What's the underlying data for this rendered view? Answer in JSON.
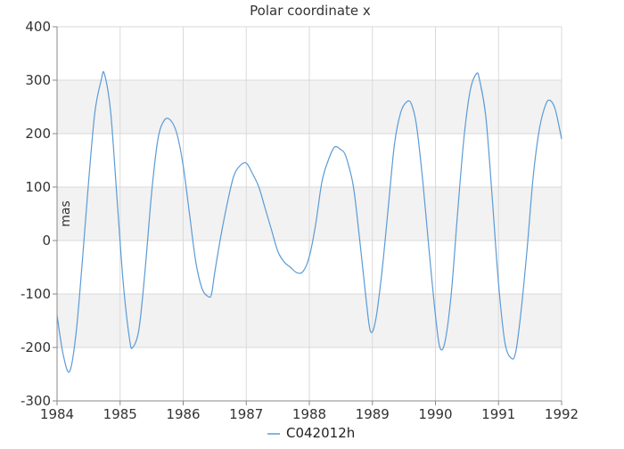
{
  "chart_data": {
    "type": "line",
    "title": "Polar coordinate x",
    "ylabel": "mas",
    "xlabel": "",
    "xlim": [
      1984,
      1992
    ],
    "ylim": [
      -300,
      400
    ],
    "x_ticks": [
      "1984",
      "1985",
      "1986",
      "1987",
      "1988",
      "1989",
      "1990",
      "1991",
      "1992"
    ],
    "y_ticks": [
      "400",
      "300",
      "200",
      "100",
      "0",
      "-100",
      "-200",
      "-300"
    ],
    "grid": true,
    "legend": {
      "placement": "bottom-center"
    },
    "colors": {
      "series": "#5b9bd5",
      "band": "#f2f2f2",
      "grid": "#d9d9d9",
      "axis": "#888888"
    },
    "series": [
      {
        "name": "C042012h",
        "x": [
          1984.0,
          1984.1,
          1984.2,
          1984.3,
          1984.4,
          1984.5,
          1984.6,
          1984.7,
          1984.75,
          1984.85,
          1984.95,
          1985.05,
          1985.15,
          1985.2,
          1985.3,
          1985.4,
          1985.5,
          1985.6,
          1985.7,
          1985.8,
          1985.9,
          1986.0,
          1986.1,
          1986.2,
          1986.3,
          1986.4,
          1986.45,
          1986.5,
          1986.6,
          1986.7,
          1986.8,
          1986.9,
          1987.0,
          1987.1,
          1987.2,
          1987.3,
          1987.4,
          1987.5,
          1987.6,
          1987.7,
          1987.8,
          1987.9,
          1988.0,
          1988.1,
          1988.2,
          1988.3,
          1988.4,
          1988.5,
          1988.55,
          1988.6,
          1988.7,
          1988.8,
          1988.9,
          1988.97,
          1989.05,
          1989.15,
          1989.25,
          1989.35,
          1989.45,
          1989.55,
          1989.62,
          1989.7,
          1989.8,
          1989.9,
          1990.0,
          1990.07,
          1990.15,
          1990.25,
          1990.35,
          1990.45,
          1990.55,
          1990.65,
          1990.7,
          1990.8,
          1990.9,
          1991.0,
          1991.1,
          1991.2,
          1991.27,
          1991.35,
          1991.45,
          1991.55,
          1991.65,
          1991.75,
          1991.82,
          1991.9,
          1992.0
        ],
        "values": [
          -140,
          -215,
          -245,
          -175,
          -40,
          110,
          240,
          300,
          312,
          240,
          80,
          -80,
          -185,
          -200,
          -165,
          -50,
          90,
          190,
          225,
          225,
          200,
          140,
          50,
          -40,
          -90,
          -105,
          -100,
          -60,
          10,
          70,
          120,
          140,
          145,
          125,
          100,
          60,
          20,
          -20,
          -40,
          -50,
          -60,
          -58,
          -30,
          30,
          110,
          150,
          175,
          170,
          165,
          150,
          100,
          0,
          -110,
          -170,
          -150,
          -60,
          60,
          180,
          240,
          260,
          255,
          215,
          110,
          -20,
          -140,
          -200,
          -190,
          -100,
          50,
          190,
          280,
          312,
          300,
          230,
          80,
          -80,
          -190,
          -220,
          -210,
          -140,
          -20,
          120,
          210,
          255,
          262,
          245,
          190
        ]
      }
    ]
  }
}
